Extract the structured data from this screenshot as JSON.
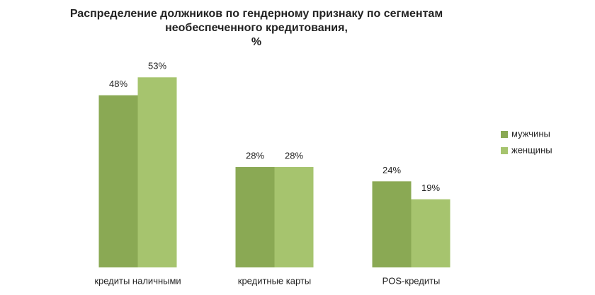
{
  "chart_data": {
    "type": "bar",
    "title": [
      "Распределение должников по гендерному признаку по сегментам",
      "необеспеченного кредитования,",
      "%"
    ],
    "categories": [
      "кредиты наличными",
      "кредитные карты",
      "POS-кредиты"
    ],
    "series": [
      {
        "name": "мужчины",
        "color": "#8aa954",
        "values": [
          48,
          28,
          24
        ],
        "value_labels": [
          "48%",
          "28%",
          "24%"
        ]
      },
      {
        "name": "женщины",
        "color": "#a6c46e",
        "values": [
          53,
          28,
          19
        ],
        "value_labels": [
          "53%",
          "28%",
          "19%"
        ]
      }
    ],
    "legend": "right",
    "grid": false
  }
}
